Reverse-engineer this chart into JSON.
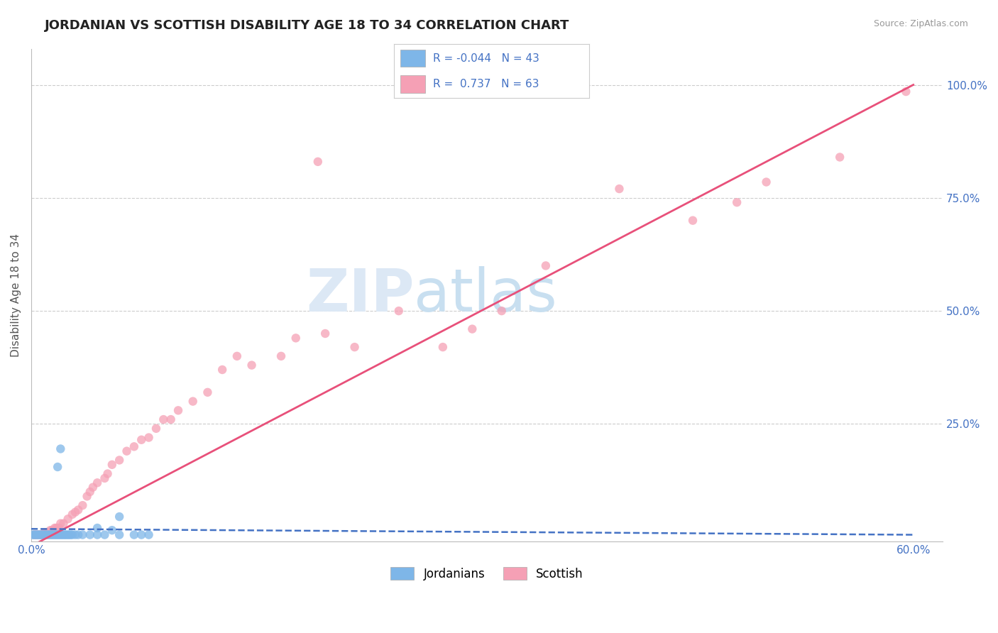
{
  "title": "JORDANIAN VS SCOTTISH DISABILITY AGE 18 TO 34 CORRELATION CHART",
  "source": "Source: ZipAtlas.com",
  "ylabel": "Disability Age 18 to 34",
  "xlim": [
    0.0,
    0.62
  ],
  "ylim": [
    -0.01,
    1.08
  ],
  "xtick_labels": [
    "0.0%",
    "",
    "",
    "",
    "",
    "",
    "60.0%"
  ],
  "xtick_values": [
    0.0,
    0.1,
    0.2,
    0.3,
    0.4,
    0.5,
    0.6
  ],
  "ytick_labels": [
    "25.0%",
    "50.0%",
    "75.0%",
    "100.0%"
  ],
  "ytick_values": [
    0.25,
    0.5,
    0.75,
    1.0
  ],
  "legend_R_jordanian": "-0.044",
  "legend_N_jordanian": "43",
  "legend_R_scottish": "0.737",
  "legend_N_scottish": "63",
  "color_jordanian": "#7eb6e8",
  "color_scottish": "#f5a0b5",
  "color_line_jordanian": "#4472c4",
  "color_line_scottish": "#e8507a",
  "color_title": "#222222",
  "color_axis_labels": "#4472c4",
  "color_source": "#999999",
  "background_color": "#ffffff",
  "grid_color": "#cccccc",
  "watermark_color": "#dce8f5",
  "scot_line_x0": 0.0,
  "scot_line_y0": -0.02,
  "scot_line_x1": 0.6,
  "scot_line_y1": 1.0,
  "jord_line_x0": 0.0,
  "jord_line_y0": 0.018,
  "jord_line_x1": 0.6,
  "jord_line_y1": 0.005
}
